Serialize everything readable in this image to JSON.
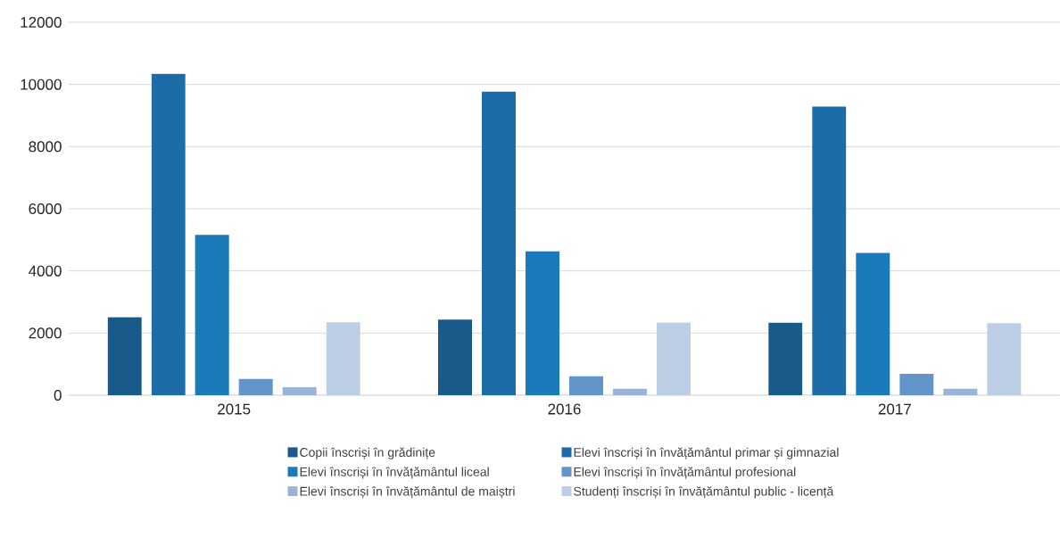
{
  "chart_data": {
    "type": "bar",
    "categories": [
      "2015",
      "2016",
      "2017"
    ],
    "series": [
      {
        "name": "Copii înscriși în grădinițe",
        "color": "#1a5a8a",
        "values": [
          2510,
          2430,
          2330
        ]
      },
      {
        "name": "Elevi înscriși în învățământul primar și gimnazial",
        "color": "#1c6ca8",
        "values": [
          10340,
          9770,
          9290
        ]
      },
      {
        "name": "Elevi înscriși în învățământul liceal",
        "color": "#1a7aba",
        "values": [
          5160,
          4630,
          4580
        ]
      },
      {
        "name": "Elevi înscriși în învățământul profesional",
        "color": "#6295c9",
        "values": [
          520,
          610,
          690
        ]
      },
      {
        "name": "Elevi înscriși în învățământul de maiștri",
        "color": "#9ab4d8",
        "values": [
          260,
          210,
          210
        ]
      },
      {
        "name": "Studenți înscriși în învățământul public - licență",
        "color": "#bccfe5",
        "values": [
          2350,
          2330,
          2320
        ]
      }
    ],
    "ylim": [
      0,
      12000
    ],
    "yticks": [
      0,
      2000,
      4000,
      6000,
      8000,
      10000,
      12000
    ],
    "grid": "y",
    "legend": "bottom"
  }
}
